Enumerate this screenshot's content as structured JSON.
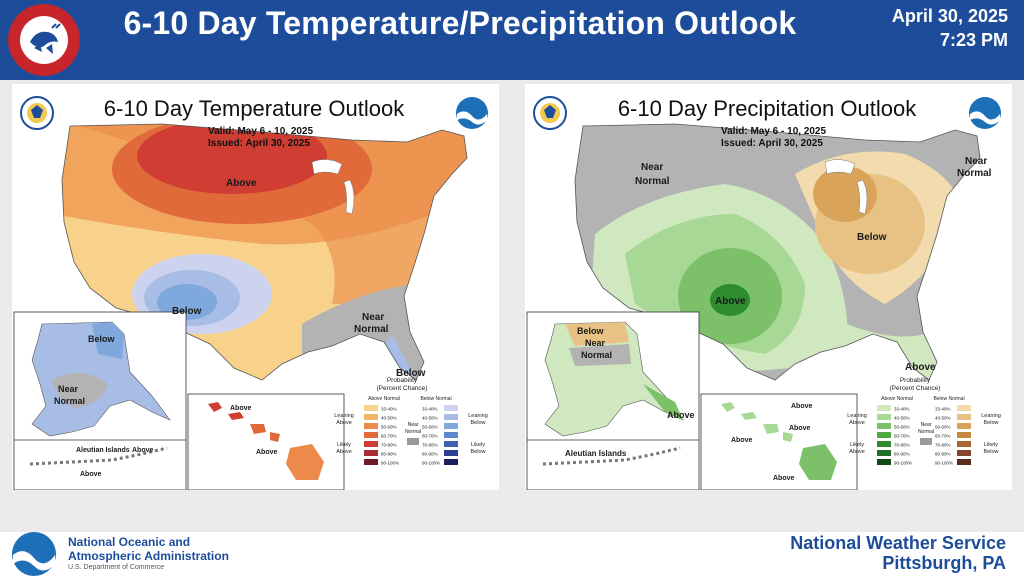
{
  "header": {
    "title": "6-10 Day Temperature/Precipitation Outlook",
    "date": "April 30, 2025",
    "time": "7:23 PM",
    "logo_text": "NATIONAL WEATHER SERVICE"
  },
  "temperature_panel": {
    "title": "6-10 Day Temperature Outlook",
    "valid": "Valid:  May 6 - 10, 2025",
    "issued": "Issued:  April 30, 2025",
    "labels": {
      "above": "Above",
      "below": "Below",
      "near_normal_1": "Near",
      "near_normal_2": "Normal",
      "below_fl": "Below",
      "ak_below": "Below",
      "ak_near_1": "Near",
      "ak_near_2": "Normal",
      "aleutian": "Aleutian Islands",
      "aleutian_above_1": "Above",
      "aleutian_above_2": "Above",
      "hi_above_1": "Above",
      "hi_above_2": "Above"
    },
    "legend": {
      "title1": "Probability",
      "title2": "(Percent Chance)",
      "col_above": "Above Normal",
      "col_below": "Below Normal",
      "leaning_above_1": "Leaning",
      "leaning_above_2": "Above",
      "likely_above_1": "Likely",
      "likely_above_2": "Above",
      "leaning_below_1": "Leaning",
      "leaning_below_2": "Below",
      "likely_below_1": "Likely",
      "likely_below_2": "Below",
      "near_1": "Near",
      "near_2": "Normal",
      "ranges": [
        "33-40%",
        "40-50%",
        "50-60%",
        "60-70%",
        "70-80%",
        "80-90%",
        "90-100%"
      ],
      "above_colors": [
        "#f8d28b",
        "#f3b566",
        "#eb8a4a",
        "#e06a3a",
        "#cf3d33",
        "#a72a34",
        "#6e1b27"
      ],
      "below_colors": [
        "#cdd3ee",
        "#a8bde6",
        "#7fa8dc",
        "#5b89cc",
        "#3d62b4",
        "#2c3d93",
        "#1c1d5c"
      ]
    }
  },
  "precipitation_panel": {
    "title": "6-10 Day Precipitation Outlook",
    "valid": "Valid:  May 6 - 10, 2025",
    "issued": "Issued:  April 30, 2025",
    "labels": {
      "near_normal_w_1": "Near",
      "near_normal_w_2": "Normal",
      "near_normal_ne_1": "Near",
      "near_normal_ne_2": "Normal",
      "above": "Above",
      "below": "Below",
      "above_se": "Above",
      "ak_below": "Below",
      "ak_near_1": "Near",
      "ak_near_2": "Normal",
      "ak_above": "Above",
      "aleutian": "Aleutian Islands",
      "hi_above_1": "Above",
      "hi_above_2": "Above",
      "hi_above_3": "Above",
      "hi_above_4": "Above"
    },
    "legend": {
      "title1": "Probability",
      "title2": "(Percent Chance)",
      "col_above": "Above Normal",
      "col_below": "Below Normal",
      "leaning_above_1": "Leaning",
      "leaning_above_2": "Above",
      "likely_above_1": "Likely",
      "likely_above_2": "Above",
      "leaning_below_1": "Leaning",
      "leaning_below_2": "Below",
      "likely_below_1": "Likely",
      "likely_below_2": "Below",
      "near_1": "Near",
      "near_2": "Normal",
      "ranges": [
        "33-40%",
        "40-50%",
        "50-60%",
        "60-70%",
        "70-80%",
        "80-90%",
        "90-100%"
      ],
      "above_colors": [
        "#cfe8c0",
        "#a8d895",
        "#7cc06a",
        "#4fa843",
        "#2e8c2e",
        "#1f6e23",
        "#124a17"
      ],
      "below_colors": [
        "#f2dcae",
        "#e7c284",
        "#d9a45a",
        "#c88541",
        "#ab6533",
        "#83462a",
        "#5a2c1f"
      ]
    }
  },
  "footer": {
    "agency_line1": "National Oceanic and",
    "agency_line2": "Atmospheric Administration",
    "department": "U.S. Department of Commerce",
    "office_line1": "National Weather Service",
    "office_line2": "Pittsburgh, PA"
  }
}
